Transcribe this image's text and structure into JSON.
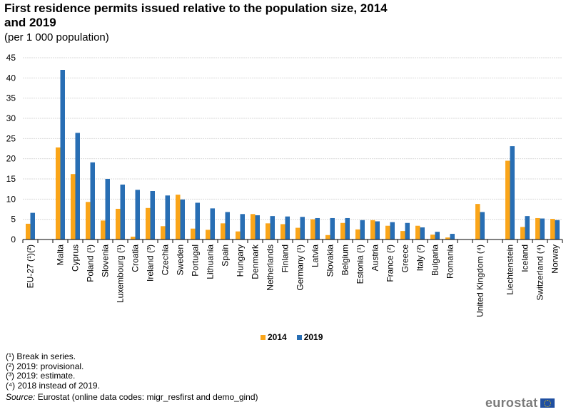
{
  "chart_data": {
    "type": "bar",
    "title": "First residence permits issued relative to the population size, 2014 and 2019",
    "subtitle": "(per 1 000 population)",
    "ylim": [
      0,
      45
    ],
    "yticks": [
      0,
      5,
      10,
      15,
      20,
      25,
      30,
      35,
      40,
      45
    ],
    "grid": true,
    "legend_placement": "bottom",
    "colors": {
      "2014": "#faa519",
      "2019": "#286eb4"
    },
    "categories": [
      "EU-27 (¹)(²)",
      "",
      "Malta",
      "Cyprus",
      "Poland (¹)",
      "Slovenia",
      "Luxembourg (¹)",
      "Croatia",
      "Ireland (³)",
      "Czechia",
      "Sweden",
      "Portugal",
      "Lithuania",
      "Spain",
      "Hungary",
      "Denmark",
      "Netherlands",
      "Finland",
      "Germany (¹)",
      "Latvia",
      "Slovakia",
      "Belgium",
      "Estonia (¹)",
      "Austria",
      "France (²)",
      "Greece",
      "Italy (²)",
      "Bulgaria",
      "Romania",
      "",
      "United Kingdom (⁴)",
      "",
      "Liechtenstein",
      "Iceland",
      "Switzerland (⁴)",
      "Norway"
    ],
    "series": [
      {
        "name": "2014",
        "values": [
          3.9,
          null,
          22.8,
          16.2,
          9.3,
          4.7,
          7.6,
          0.7,
          7.8,
          3.3,
          11.1,
          2.7,
          2.4,
          4.0,
          2.0,
          6.3,
          4.0,
          3.8,
          2.9,
          5.0,
          1.1,
          4.1,
          2.5,
          4.8,
          3.4,
          2.1,
          3.4,
          1.2,
          0.5,
          null,
          8.8,
          null,
          19.5,
          3.1,
          5.3,
          5.1
        ]
      },
      {
        "name": "2019",
        "values": [
          6.6,
          null,
          42.0,
          26.4,
          19.1,
          15.0,
          13.6,
          12.3,
          12.0,
          10.9,
          9.9,
          9.1,
          7.7,
          6.8,
          6.3,
          6.0,
          5.8,
          5.7,
          5.6,
          5.3,
          5.3,
          5.3,
          4.8,
          4.5,
          4.3,
          4.1,
          3.0,
          1.9,
          1.4,
          null,
          6.8,
          null,
          23.1,
          5.8,
          5.2,
          4.8
        ]
      }
    ]
  },
  "footnotes": [
    "(¹) Break in series.",
    "(²) 2019: provisional.",
    "(³) 2019: estimate.",
    "(⁴) 2018 instead of 2019."
  ],
  "source_label": "Source:",
  "source_text": " Eurostat (online data codes: migr_resfirst and demo_gind)",
  "logo_text": "eurostat"
}
